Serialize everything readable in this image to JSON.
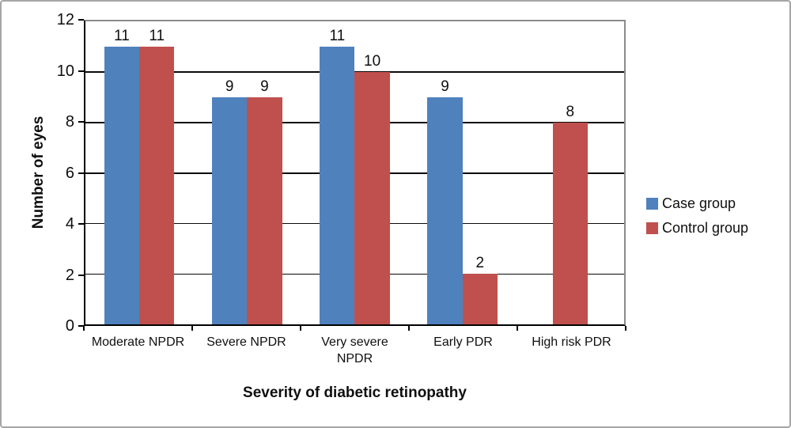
{
  "chart_data": {
    "type": "bar",
    "title": "",
    "xlabel": "Severity of diabetic retinopathy",
    "ylabel": "Number of eyes",
    "categories": [
      "Moderate NPDR",
      "Severe NPDR",
      "Very severe NPDR",
      "Early PDR",
      "High risk PDR"
    ],
    "series": [
      {
        "name": "Case group",
        "color": "#4F81BD",
        "values": [
          11,
          9,
          11,
          9,
          null
        ]
      },
      {
        "name": "Control group",
        "color": "#C0504D",
        "values": [
          11,
          9,
          10,
          2,
          8
        ]
      }
    ],
    "ylim": [
      0,
      12
    ],
    "yticks": [
      0,
      2,
      4,
      6,
      8,
      10,
      12
    ],
    "grid": true,
    "data_labels": true,
    "legend_position": "right"
  },
  "colors": {
    "gridline": "#0a0a0a",
    "axis_line": "#000000",
    "plot_border": "#8c8c8c",
    "frame_border": "#a6a6a6",
    "text": "#0f0f0f"
  }
}
